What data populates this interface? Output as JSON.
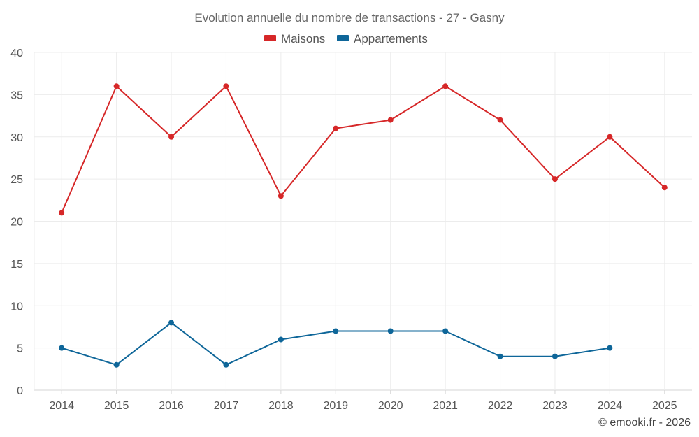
{
  "chart_data": {
    "type": "line",
    "title": "Evolution annuelle du nombre de transactions - 27 - Gasny",
    "xlabel": "",
    "ylabel": "",
    "categories": [
      "2014",
      "2015",
      "2016",
      "2017",
      "2018",
      "2019",
      "2020",
      "2021",
      "2022",
      "2023",
      "2024",
      "2025"
    ],
    "ylim": [
      0,
      40
    ],
    "yticks": [
      0,
      5,
      10,
      15,
      20,
      25,
      30,
      35,
      40
    ],
    "grid": true,
    "legend_position": "top-center",
    "series": [
      {
        "name": "Maisons",
        "color": "#d62728",
        "values": [
          21,
          36,
          30,
          36,
          23,
          31,
          32,
          36,
          32,
          25,
          30,
          24
        ]
      },
      {
        "name": "Appartements",
        "color": "#0e6699",
        "values": [
          5,
          3,
          8,
          3,
          6,
          7,
          7,
          7,
          4,
          4,
          5,
          null
        ]
      }
    ],
    "credit": "© emooki.fr - 2026"
  }
}
